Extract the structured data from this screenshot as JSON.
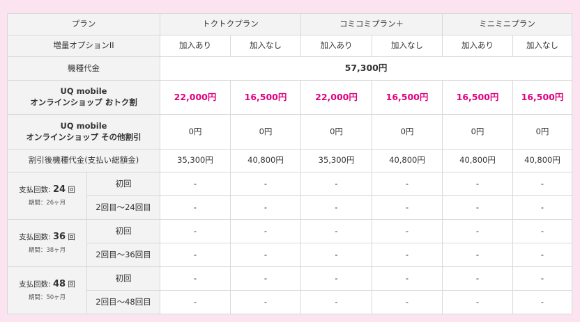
{
  "header": {
    "plan_label": "プラン",
    "plans": [
      "トクトクプラン",
      "コミコミプラン＋",
      "ミニミニプラン"
    ]
  },
  "option": {
    "label": "増量オプションII",
    "values": [
      "加入あり",
      "加入なし",
      "加入あり",
      "加入なし",
      "加入あり",
      "加入なし"
    ]
  },
  "device_price": {
    "label": "機種代金",
    "value": "57,300円"
  },
  "discount_otoku": {
    "label_line1": "UQ mobile",
    "label_line2": "オンラインショップ おトク割",
    "values": [
      "22,000円",
      "16,500円",
      "22,000円",
      "16,500円",
      "16,500円",
      "16,500円"
    ]
  },
  "discount_other": {
    "label_line1": "UQ mobile",
    "label_line2": "オンラインショップ その他割引",
    "values": [
      "0円",
      "0円",
      "0円",
      "0円",
      "0円",
      "0円"
    ]
  },
  "after_discount": {
    "label": "割引後機種代金(支払い総額金)",
    "values": [
      "35,300円",
      "40,800円",
      "35,300円",
      "40,800円",
      "40,800円",
      "40,800円"
    ]
  },
  "installments": [
    {
      "prefix": "支払回数:",
      "count": "24",
      "suffix": "回",
      "period": "期間：26ヶ月",
      "rows": [
        {
          "label": "初回",
          "values": [
            "-",
            "-",
            "-",
            "-",
            "-",
            "-"
          ]
        },
        {
          "label": "2回目〜24回目",
          "values": [
            "-",
            "-",
            "-",
            "-",
            "-",
            "-"
          ]
        }
      ]
    },
    {
      "prefix": "支払回数:",
      "count": "36",
      "suffix": "回",
      "period": "期間：38ヶ月",
      "rows": [
        {
          "label": "初回",
          "values": [
            "-",
            "-",
            "-",
            "-",
            "-",
            "-"
          ]
        },
        {
          "label": "2回目〜36回目",
          "values": [
            "-",
            "-",
            "-",
            "-",
            "-",
            "-"
          ]
        }
      ]
    },
    {
      "prefix": "支払回数:",
      "count": "48",
      "suffix": "回",
      "period": "期間：50ヶ月",
      "rows": [
        {
          "label": "初回",
          "values": [
            "-",
            "-",
            "-",
            "-",
            "-",
            "-"
          ]
        },
        {
          "label": "2回目〜48回目",
          "values": [
            "-",
            "-",
            "-",
            "-",
            "-",
            "-"
          ]
        }
      ]
    }
  ],
  "colors": {
    "page_background": "#fbe3ef",
    "header_gray": "#f3f3f3",
    "discount_pink": "#e0007f",
    "border": "#d8d8d8"
  }
}
